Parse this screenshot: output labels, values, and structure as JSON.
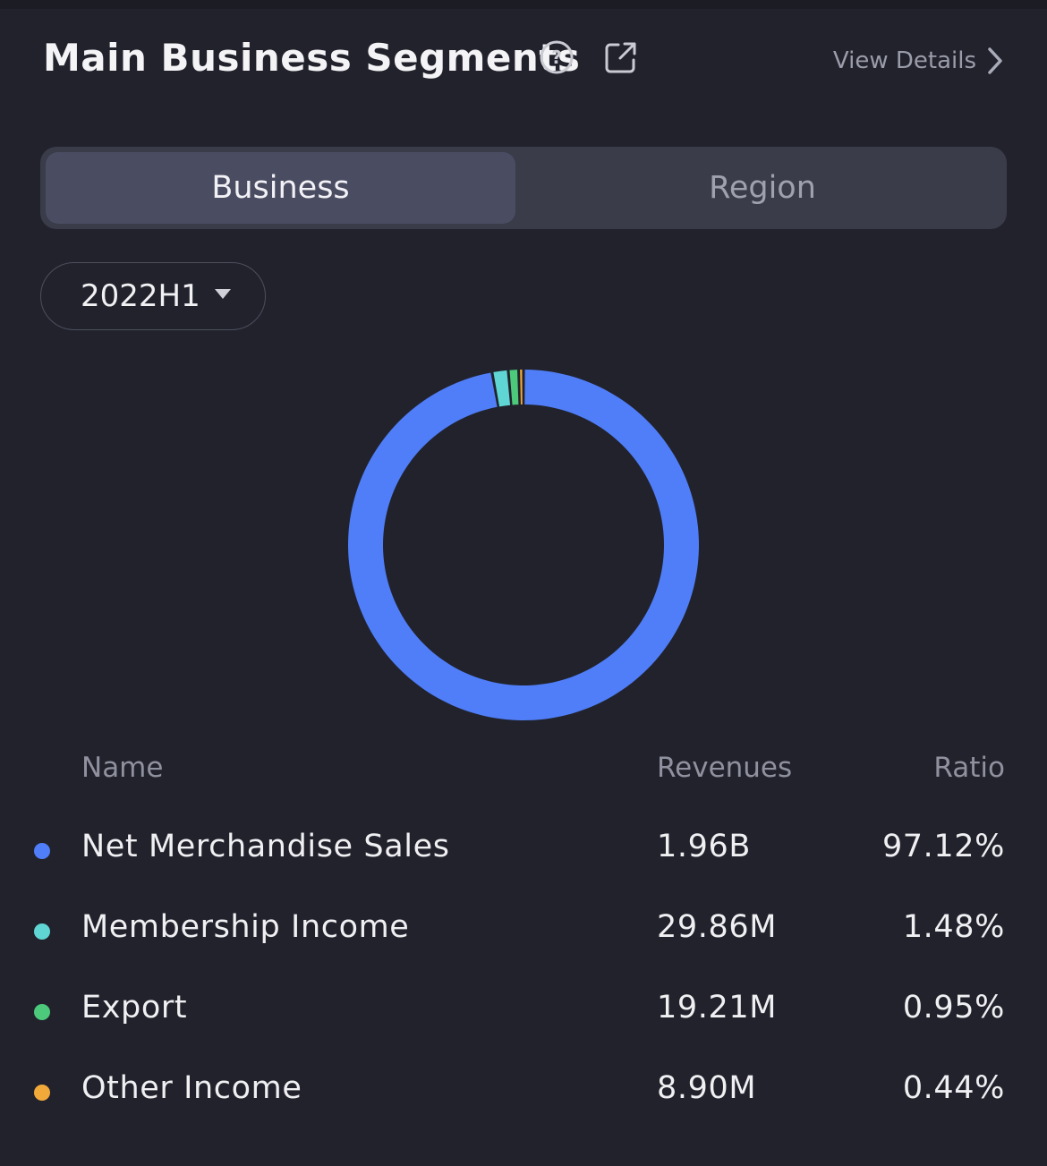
{
  "header": {
    "title": "Main Business Segments",
    "view_details_label": "View Details"
  },
  "tabs": [
    {
      "label": "Business",
      "active": true
    },
    {
      "label": "Region",
      "active": false
    }
  ],
  "period_selector": {
    "selected": "2022H1"
  },
  "table": {
    "columns": [
      "Name",
      "Revenues",
      "Ratio"
    ],
    "rows": [
      {
        "name": "Net Merchandise Sales",
        "revenues": "1.96B",
        "ratio": "97.12%",
        "color": "#4f7ef8"
      },
      {
        "name": "Membership Income",
        "revenues": "29.86M",
        "ratio": "1.48%",
        "color": "#5fd6d4"
      },
      {
        "name": "Export",
        "revenues": "19.21M",
        "ratio": "0.95%",
        "color": "#4cc97b"
      },
      {
        "name": "Other Income",
        "revenues": "8.90M",
        "ratio": "0.44%",
        "color": "#f1a93a"
      }
    ]
  },
  "chart_data": {
    "type": "pie",
    "style": "donut",
    "categories": [
      "Net Merchandise Sales",
      "Membership Income",
      "Export",
      "Other Income"
    ],
    "values": [
      97.12,
      1.48,
      0.95,
      0.44
    ],
    "unit": "%",
    "colors": [
      "#4f7ef8",
      "#5fd6d4",
      "#4cc97b",
      "#f1a93a"
    ],
    "title": "",
    "legend": "table-below"
  },
  "colors": {
    "background": "#21222c",
    "tab_track": "#3a3c4a",
    "tab_active": "#4a4c62",
    "muted_text": "#8f919e"
  }
}
